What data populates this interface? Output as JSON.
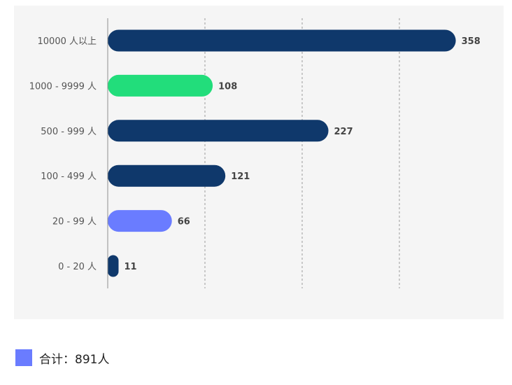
{
  "chart_data": {
    "type": "bar",
    "orientation": "horizontal",
    "categories": [
      "10000 人以上",
      "1000 - 9999 人",
      "500 - 999 人",
      "100 - 499 人",
      "20 - 99 人",
      "0 - 20 人"
    ],
    "values": [
      358,
      108,
      227,
      121,
      66,
      11
    ],
    "value_labels": [
      "358",
      "108",
      "227",
      "121",
      "66",
      "11"
    ],
    "bar_colors": [
      "#0f386b",
      "#22dd7b",
      "#0f386b",
      "#0f386b",
      "#6a7cff",
      "#0f386b"
    ],
    "xlim": [
      0,
      400
    ],
    "gridlines": [
      100,
      200,
      300
    ],
    "grid": "vertical-dashed",
    "background": "#f5f5f5"
  },
  "legend": {
    "swatch_color": "#6a7cff",
    "text": "合计：891人"
  }
}
